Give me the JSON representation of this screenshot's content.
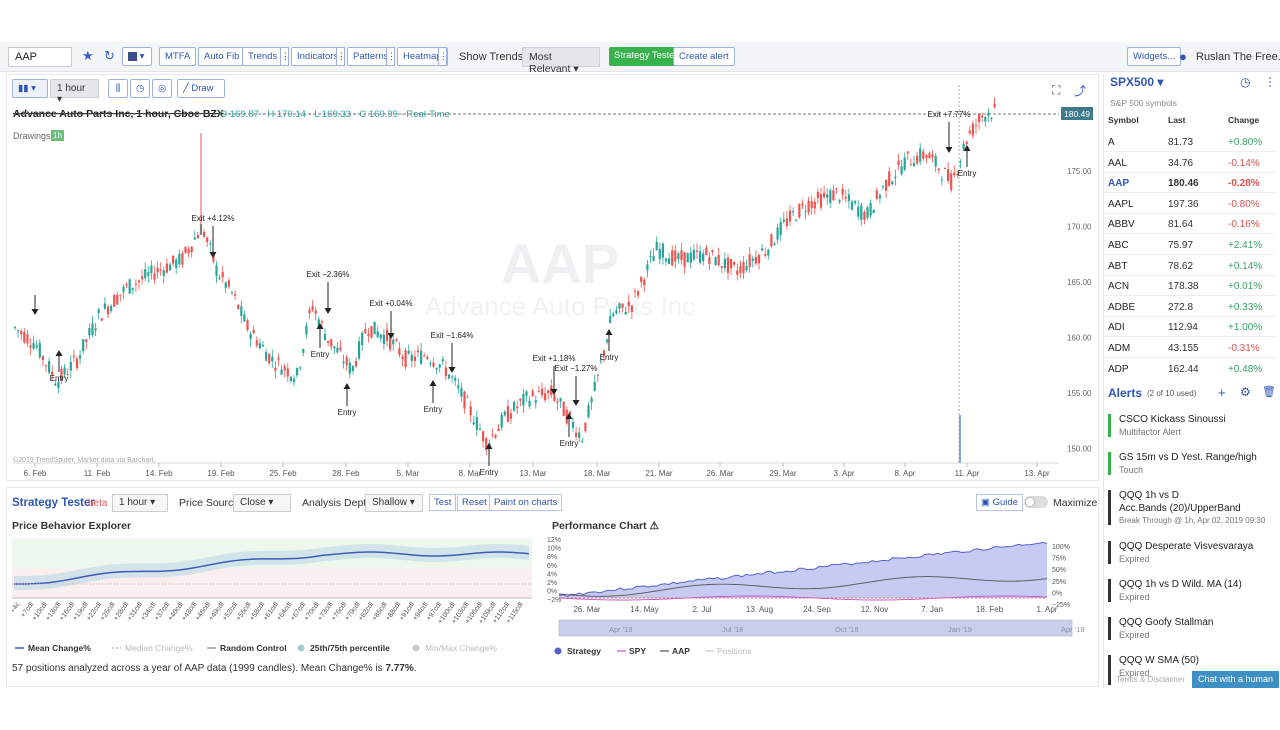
{
  "toolbar": {
    "symbol": "AAP",
    "mtfa": "MTFA",
    "autofib": "Auto Fib",
    "trends": "Trends",
    "indicators": "Indicators",
    "patterns": "Patterns",
    "heatmap": "Heatmap",
    "show_trends_label": "Show Trends",
    "show_trends_value": "Most Relevant",
    "strategy_tester": "Strategy Tester",
    "create_alert": "Create alert",
    "widgets": "Widgets...",
    "user": "Ruslan The Free..."
  },
  "chart": {
    "interval": "1 hour",
    "draw": "Draw",
    "title": "Advance Auto Parts Inc, 1 hour, Cboe BZX",
    "ohlc": "· O 169.87 · H 170.14 · L 169.33 · C 169.99 · Real-Time",
    "drawings_label": "Drawings",
    "drawings_badge": "1h",
    "watermark_symbol": "AAP",
    "watermark_name": "Advance Auto Parts Inc",
    "copyright": "©2019 TrendSpider. Market data via Barchart.",
    "last_price_tag": "180.49",
    "y_ticks": [
      "175.00",
      "170.00",
      "165.00",
      "160.00",
      "155.00",
      "150.00"
    ],
    "x_ticks": [
      "6. Feb",
      "11. Feb",
      "14. Feb",
      "19. Feb",
      "25. Feb",
      "28. Feb",
      "5. Mar",
      "8. Mar",
      "13. Mar",
      "18. Mar",
      "21. Mar",
      "26. Mar",
      "29. Mar",
      "3. Apr",
      "8. Apr",
      "11. Apr",
      "13. Apr"
    ],
    "annotations": {
      "entry": "Entry",
      "exits": [
        "Exit +4.12%",
        "Exit −2.36%",
        "Exit +0.04%",
        "Exit −1.64%",
        "Exit +1.18%",
        "Exit −1.27%",
        "Exit +7.77%"
      ]
    },
    "colors": {
      "up": "#26a69a",
      "down": "#ef5350",
      "accent": "#2f55b4"
    }
  },
  "watchlist": {
    "symbol": "SPX500",
    "subtitle": "S&P 500 symbols",
    "headers": [
      "Symbol",
      "Last",
      "Change"
    ],
    "rows": [
      {
        "symbol": "A",
        "last": "81.73",
        "change": "+0.80%"
      },
      {
        "symbol": "AAL",
        "last": "34.76",
        "change": "-0.14%"
      },
      {
        "symbol": "AAP",
        "last": "180.46",
        "change": "-0.28%"
      },
      {
        "symbol": "AAPL",
        "last": "197.36",
        "change": "-0.80%"
      },
      {
        "symbol": "ABBV",
        "last": "81.64",
        "change": "-0.16%"
      },
      {
        "symbol": "ABC",
        "last": "75.97",
        "change": "+2.41%"
      },
      {
        "symbol": "ABT",
        "last": "78.62",
        "change": "+0.14%"
      },
      {
        "symbol": "ACN",
        "last": "178.38",
        "change": "+0.01%"
      },
      {
        "symbol": "ADBE",
        "last": "272.8",
        "change": "+0.33%"
      },
      {
        "symbol": "ADI",
        "last": "112.94",
        "change": "+1.00%"
      },
      {
        "symbol": "ADM",
        "last": "43.155",
        "change": "-0.31%"
      },
      {
        "symbol": "ADP",
        "last": "162.44",
        "change": "+0.48%"
      }
    ]
  },
  "alerts": {
    "title": "Alerts",
    "count": "(2 of 10 used)",
    "items": [
      {
        "line1": "CSCO  Kickass Sinoussi",
        "line2": "Multifactor Alert"
      },
      {
        "line1": "GS  15m vs D  Yest. Range/high",
        "line2": "Touch"
      },
      {
        "line1": "QQQ  1h vs D",
        "line2": "Acc.Bands (20)/UpperBand",
        "line3": "Break Through @ 1h, Apr 02, 2019 09:30"
      },
      {
        "line1": "QQQ  Desperate Visvesvaraya",
        "line2": "Expired"
      },
      {
        "line1": "QQQ  1h vs D  Wild. MA (14)",
        "line2": "Expired"
      },
      {
        "line1": "QQQ  Goofy Stallman",
        "line2": "Expired"
      },
      {
        "line1": "QQQ  W  SMA (50)",
        "line2": "Expired"
      }
    ],
    "terms": "Terms & Disclaimer",
    "chat": "Chat with a human"
  },
  "strategy": {
    "title": "Strategy Tester",
    "beta": "beta",
    "interval": "1 hour",
    "price_source_label": "Price Source",
    "price_source": "Close",
    "depth_label": "Analysis Depth",
    "depth": "Shallow",
    "test": "Test",
    "reset": "Reset",
    "paint": "Paint on charts",
    "guide": "Guide",
    "maximize": "Maximize",
    "pbe_title": "Price Behavior Explorer",
    "pbe_x_ticks": [
      "+4c",
      "+7cdl",
      "+10cdl",
      "+13cdl",
      "+16cdl",
      "+19cdl",
      "+22cdl",
      "+25cdl",
      "+28cdl",
      "+31cdl",
      "+34cdl",
      "+37cdl",
      "+40cdl",
      "+43cdl",
      "+46cdl",
      "+49cdl",
      "+52cdl",
      "+55cdl",
      "+58cdl",
      "+61cdl",
      "+64cdl",
      "+67cdl",
      "+70cdl",
      "+73cdl",
      "+76cdl",
      "+79cdl",
      "+82cdl",
      "+85cdl",
      "+88cdl",
      "+91cdl",
      "+94cdl",
      "+97cdl",
      "+100cdl",
      "+103cdl",
      "+106cdl",
      "+109cdl",
      "+112cdl",
      "+115cdl"
    ],
    "pbe_legend": [
      "Mean Change%",
      "Median Change%",
      "Random Control",
      "25th/75th percentile",
      "Min/Max Change%"
    ],
    "summary_prefix": "57 positions analyzed across a year of AAP data (1999 candles). Mean Change% is ",
    "summary_value": "7.77%",
    "summary_suffix": ".",
    "perf_title": "Performance Chart",
    "perf_left_ticks": [
      "12%",
      "10%",
      "8%",
      "6%",
      "4%",
      "2%",
      "0%",
      "−2%"
    ],
    "perf_right_ticks": [
      "100%",
      "75%",
      "50%",
      "25%",
      "0%",
      "−25%"
    ],
    "perf_x_ticks": [
      "26. Mar",
      "14. May",
      "2. Jul",
      "13. Aug",
      "24. Sep",
      "12. Nov",
      "7. Jan",
      "18. Feb",
      "1. Apr"
    ],
    "nav_ticks": [
      "Apr '18",
      "Jul '18",
      "Oct '18",
      "Jan '19",
      "Apr '19"
    ],
    "perf_legend": [
      "Strategy",
      "SPY",
      "AAP",
      "Positions"
    ]
  }
}
